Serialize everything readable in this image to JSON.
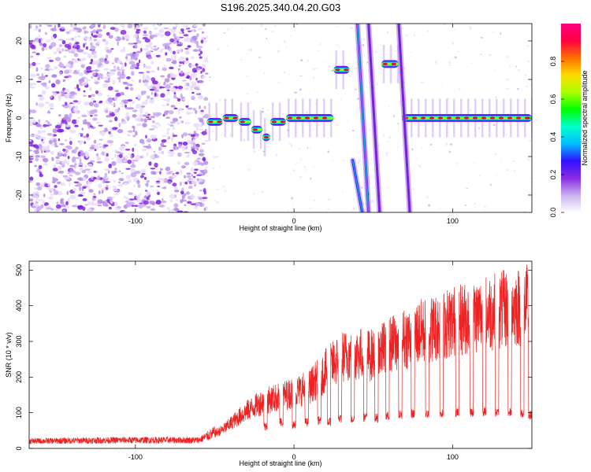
{
  "title": "S196.2025.340.04.20.G03",
  "spectrogram": {
    "type": "heatmap",
    "xlabel": "Height of straight line (km)",
    "ylabel": "Frequency (Hz)",
    "xlim": [
      -167,
      150
    ],
    "ylim": [
      -24.5,
      24.5
    ],
    "xticks": [
      -100,
      0,
      100
    ],
    "yticks": [
      -20,
      -10,
      0,
      10,
      20
    ],
    "colorbar": {
      "label": "Normalized spectral amplitude",
      "range": [
        0,
        1
      ],
      "ticks": [
        0.0,
        0.2,
        0.4,
        0.6,
        0.8
      ],
      "colors": [
        "#ffffff",
        "#c9b1f0",
        "#8a2be2",
        "#3010ff",
        "#00bfff",
        "#00ffcc",
        "#00ff00",
        "#aaff00",
        "#ffdd00",
        "#ff7000",
        "#ff0040",
        "#ff0080"
      ]
    },
    "features": {
      "noise_region_x": [
        -167,
        -55
      ],
      "carrier_segments": [
        {
          "x": [
            -55,
            -45
          ],
          "freq": -1
        },
        {
          "x": [
            -45,
            -35
          ],
          "freq": 0
        },
        {
          "x": [
            -35,
            -27
          ],
          "freq": -1
        },
        {
          "x": [
            -27,
            -20
          ],
          "freq": -3
        },
        {
          "x": [
            -20,
            -15
          ],
          "freq": -5
        },
        {
          "x": [
            -15,
            -5
          ],
          "freq": -1
        },
        {
          "x": [
            -5,
            25
          ],
          "freq": 0
        },
        {
          "x": [
            25,
            35
          ],
          "freq": 12.5
        },
        {
          "x": [
            55,
            66
          ],
          "freq": 14
        },
        {
          "x": [
            68,
            150
          ],
          "freq": 0
        }
      ],
      "diagonal_streaks": [
        {
          "x": [
            37,
            43
          ],
          "freq": [
            -11,
            -24.5
          ]
        },
        {
          "x": [
            40,
            47
          ],
          "freq": [
            24.5,
            -24.5
          ]
        },
        {
          "x": [
            47,
            54
          ],
          "freq": [
            24.5,
            -24.5
          ]
        },
        {
          "x": [
            66,
            73
          ],
          "freq": [
            24.5,
            -24.5
          ]
        }
      ]
    }
  },
  "chart_data": [
    {
      "type": "heatmap",
      "title": "S196.2025.340.04.20.G03",
      "xlabel": "Height of straight line (km)",
      "ylabel": "Frequency (Hz)",
      "xlim": [
        -167,
        150
      ],
      "ylim": [
        -24.5,
        24.5
      ]
    },
    {
      "type": "line",
      "xlabel": "Height of straight line (km)",
      "ylabel": "SNR (10 * v/v)",
      "xlim": [
        -167,
        150
      ],
      "ylim": [
        0,
        525
      ],
      "xticks": [
        -100,
        0,
        100
      ],
      "yticks": [
        0,
        100,
        200,
        300,
        400,
        500
      ],
      "series": [
        {
          "name": "SNR",
          "color": "#ee2222",
          "envelope_x": [
            -167,
            -110,
            -60,
            -45,
            -30,
            -20,
            -10,
            0,
            10,
            20,
            30,
            40,
            50,
            60,
            70,
            80,
            90,
            100,
            110,
            120,
            130,
            140,
            150
          ],
          "envelope_y": [
            22,
            25,
            25,
            60,
            120,
            150,
            165,
            180,
            200,
            250,
            295,
            305,
            300,
            330,
            355,
            375,
            390,
            410,
            420,
            435,
            445,
            455,
            465
          ],
          "dropouts_x": [
            -18,
            -8,
            0,
            8,
            16,
            22,
            29,
            37,
            45,
            52,
            59,
            67,
            75,
            84,
            93,
            103,
            112,
            120,
            128,
            136,
            144,
            149
          ],
          "dropout_min_y": [
            50,
            60,
            55,
            60,
            65,
            62,
            70,
            70,
            75,
            72,
            78,
            82,
            85,
            85,
            85,
            88,
            88,
            90,
            88,
            88,
            85,
            80
          ]
        }
      ]
    }
  ]
}
